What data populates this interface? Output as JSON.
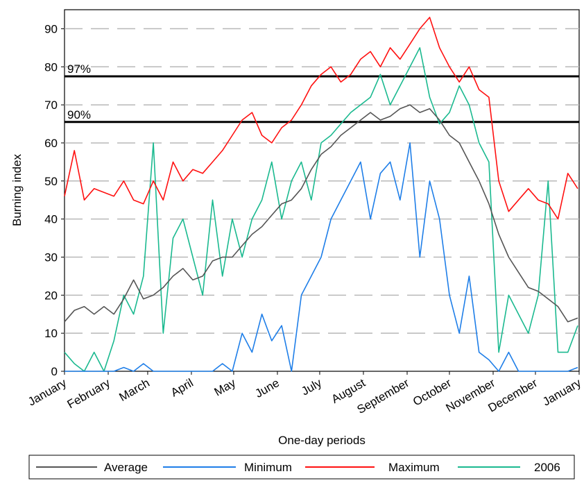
{
  "chart_data": {
    "type": "line",
    "x_label": "One-day periods",
    "y_label": "Burning index",
    "xlim": [
      0,
      365
    ],
    "ylim": [
      0,
      95
    ],
    "xticks": [
      {
        "value": 0,
        "label": "January"
      },
      {
        "value": 31,
        "label": "February"
      },
      {
        "value": 59,
        "label": "March"
      },
      {
        "value": 90,
        "label": "April"
      },
      {
        "value": 120,
        "label": "May"
      },
      {
        "value": 151,
        "label": "June"
      },
      {
        "value": 181,
        "label": "July"
      },
      {
        "value": 212,
        "label": "August"
      },
      {
        "value": 243,
        "label": "September"
      },
      {
        "value": 273,
        "label": "October"
      },
      {
        "value": 304,
        "label": "November"
      },
      {
        "value": 334,
        "label": "December"
      },
      {
        "value": 365,
        "label": "January"
      }
    ],
    "yticks": [
      0,
      10,
      20,
      30,
      40,
      50,
      60,
      70,
      80,
      90
    ],
    "grid": true,
    "reference_lines": [
      {
        "value": 77.5,
        "label": "97%"
      },
      {
        "value": 65.5,
        "label": "90%"
      }
    ],
    "x": [
      0,
      7,
      14,
      21,
      28,
      35,
      42,
      49,
      56,
      63,
      70,
      77,
      84,
      91,
      98,
      105,
      112,
      119,
      126,
      133,
      140,
      147,
      154,
      161,
      168,
      175,
      182,
      189,
      196,
      203,
      210,
      217,
      224,
      231,
      238,
      245,
      252,
      259,
      266,
      273,
      280,
      287,
      294,
      301,
      308,
      315,
      322,
      329,
      336,
      343,
      350,
      357,
      364
    ],
    "series": [
      {
        "name": "Average",
        "color": "#555555",
        "values": [
          13,
          16,
          17,
          15,
          17,
          15,
          19,
          24,
          19,
          20,
          22,
          25,
          27,
          24,
          25,
          29,
          30,
          30,
          33,
          36,
          38,
          41,
          44,
          45,
          48,
          53,
          57,
          59,
          62,
          64,
          66,
          68,
          66,
          67,
          69,
          70,
          68,
          69,
          66,
          62,
          60,
          55,
          50,
          44,
          36,
          30,
          26,
          22,
          21,
          19,
          17,
          13,
          14
        ]
      },
      {
        "name": "Minimum",
        "color": "#1e7ee8",
        "values": [
          0,
          0,
          0,
          0,
          0,
          0,
          1,
          0,
          2,
          0,
          0,
          0,
          0,
          0,
          0,
          0,
          2,
          0,
          10,
          5,
          15,
          8,
          12,
          0,
          20,
          25,
          30,
          40,
          45,
          50,
          55,
          40,
          52,
          55,
          45,
          60,
          30,
          50,
          40,
          20,
          10,
          25,
          5,
          3,
          0,
          5,
          0,
          0,
          0,
          0,
          0,
          0,
          1
        ]
      },
      {
        "name": "Maximum",
        "color": "#ff1010",
        "values": [
          46,
          58,
          45,
          48,
          47,
          46,
          50,
          45,
          44,
          50,
          45,
          55,
          50,
          53,
          52,
          55,
          58,
          62,
          66,
          68,
          62,
          60,
          64,
          66,
          70,
          75,
          78,
          80,
          76,
          78,
          82,
          84,
          80,
          85,
          82,
          86,
          90,
          93,
          85,
          80,
          76,
          80,
          74,
          72,
          50,
          42,
          45,
          48,
          45,
          44,
          40,
          52,
          48
        ]
      },
      {
        "name": "2006",
        "color": "#1ab98f",
        "values": [
          5,
          2,
          0,
          5,
          0,
          8,
          20,
          15,
          25,
          60,
          10,
          35,
          40,
          30,
          20,
          45,
          25,
          40,
          30,
          40,
          45,
          55,
          40,
          50,
          55,
          45,
          60,
          62,
          65,
          68,
          70,
          72,
          78,
          70,
          75,
          80,
          85,
          72,
          65,
          68,
          75,
          70,
          60,
          55,
          5,
          20,
          15,
          10,
          20,
          50,
          5,
          5,
          12
        ]
      }
    ]
  }
}
